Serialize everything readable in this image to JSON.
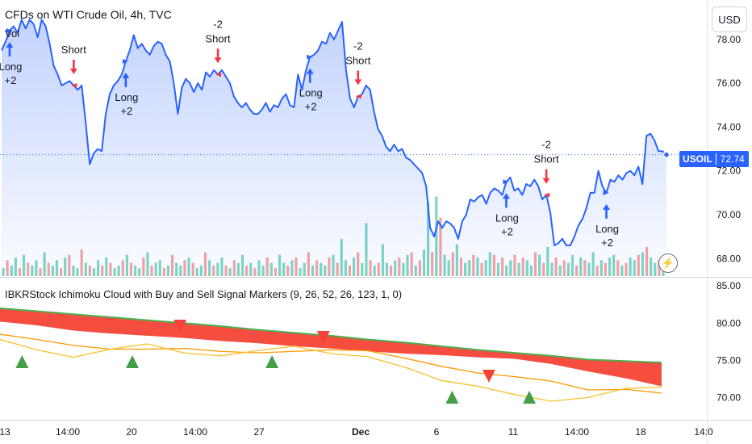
{
  "header": {
    "title": "CFDs on WTI Crude Oil, 4h, TVC",
    "volume_label": "Vol"
  },
  "currency_button": "USD",
  "price_tag": {
    "symbol": "USOIL",
    "price": "72.74"
  },
  "indicator": {
    "title": "IBKRStock Ichimoku Cloud with Buy and Sell Signal Markers (9, 26, 52, 26, 123, 1, 0)"
  },
  "colors": {
    "price_line": "#2962ff",
    "buy": "#2962ff",
    "sell": "#f23645",
    "cloud_red": "#f44336",
    "cloud_green": "#4caf50",
    "vol_up": "#7ed6c4",
    "vol_down": "#f5a3a3",
    "signal_up": "#43a047",
    "signal_down": "#f44336"
  },
  "chart_data": [
    {
      "type": "line",
      "title": "CFDs on WTI Crude Oil, 4h, TVC",
      "ylim": [
        67.2,
        79.8
      ],
      "y_ticks": [
        "78.00",
        "76.00",
        "74.00",
        "72.00",
        "70.00",
        "68.00"
      ],
      "x_ticks": [
        "13",
        "14:00",
        "20",
        "14:00",
        "27",
        "Dec",
        "6",
        "11",
        "14:00",
        "18",
        "14:0"
      ],
      "series": [
        {
          "values": [
            77.5,
            77.9,
            78.4,
            78.6,
            78.3,
            78.9,
            78.5,
            78.9,
            78.7,
            78.1,
            78.9,
            78.6,
            77.8,
            76.8,
            76.4,
            75.9,
            76.0,
            76.1,
            75.9,
            75.7,
            75.9,
            74.2,
            72.3,
            72.8,
            73.0,
            72.9,
            74.6,
            75.5,
            75.9,
            76.1,
            76.4,
            77.0,
            77.5,
            78.2,
            77.6,
            77.8,
            77.5,
            77.3,
            77.7,
            77.9,
            77.8,
            77.3,
            77.0,
            76.0,
            74.6,
            75.8,
            76.2,
            76.0,
            75.6,
            76.0,
            75.7,
            76.5,
            76.3,
            76.6,
            76.4,
            76.6,
            76.3,
            76.0,
            75.4,
            75.1,
            74.9,
            75.1,
            74.8,
            74.6,
            74.6,
            74.8,
            75.1,
            74.7,
            75.0,
            74.9,
            75.3,
            75.5,
            75.0,
            74.9,
            76.4,
            75.7,
            76.6,
            77.2,
            77.3,
            77.5,
            77.9,
            77.8,
            78.3,
            78.0,
            78.4,
            78.8,
            76.6,
            75.3,
            74.9,
            75.4,
            75.5,
            75.9,
            75.7,
            74.7,
            73.9,
            73.6,
            73.1,
            72.9,
            73.2,
            72.9,
            73.0,
            72.6,
            72.5,
            72.3,
            72.1,
            71.9,
            71.3,
            69.4,
            69.0,
            69.7,
            69.4,
            69.7,
            69.6,
            69.4,
            68.9,
            69.7,
            70.0,
            70.7,
            70.6,
            70.8,
            70.9,
            70.5,
            71.0,
            71.2,
            71.1,
            70.9,
            71.5,
            71.7,
            71.1,
            71.2,
            70.9,
            71.4,
            71.3,
            71.6,
            71.3,
            70.7,
            70.9,
            70.1,
            68.6,
            68.7,
            68.9,
            68.6,
            68.6,
            69.0,
            69.5,
            69.8,
            70.3,
            71.0,
            71.0,
            72.0,
            71.3,
            71.0,
            71.6,
            71.5,
            71.8,
            71.6,
            71.9,
            72.0,
            71.8,
            72.2,
            71.4,
            73.6,
            73.7,
            73.4,
            72.9,
            72.9,
            72.74
          ]
        }
      ],
      "signals": [
        {
          "kind": "long",
          "text": [
            "Long",
            "+2"
          ],
          "index": 2
        },
        {
          "kind": "short",
          "text": [
            "Short"
          ],
          "index": 18
        },
        {
          "kind": "long",
          "text": [
            "Long",
            "+2"
          ],
          "index": 31
        },
        {
          "kind": "short",
          "text": [
            "-2",
            "Short"
          ],
          "index": 54
        },
        {
          "kind": "long",
          "text": [
            "Long",
            "+2"
          ],
          "index": 77
        },
        {
          "kind": "short",
          "text": [
            "-2",
            "Short"
          ],
          "index": 89
        },
        {
          "kind": "long",
          "text": [
            "Long",
            "+2"
          ],
          "index": 126
        },
        {
          "kind": "short",
          "text": [
            "-2",
            "Short"
          ],
          "index": 136
        },
        {
          "kind": "long",
          "text": [
            "Long",
            "+2"
          ],
          "index": 151
        }
      ],
      "last_value": 72.74
    },
    {
      "type": "area",
      "title": "IBKRStock Ichimoku Cloud with Buy and Sell Signal Markers (9, 26, 52, 26, 123, 1, 0)",
      "ylim": [
        67.0,
        86.0
      ],
      "y_ticks": [
        "85.00",
        "80.00",
        "75.00",
        "70.00"
      ],
      "cloud_upper": [
        82.0,
        81.6,
        81.2,
        80.8,
        80.4,
        80.0,
        79.6,
        79.1,
        78.7,
        78.3,
        77.8,
        77.4,
        76.9,
        76.4,
        76.0,
        75.6,
        75.1,
        74.9,
        74.7
      ],
      "cloud_lower": [
        80.2,
        79.7,
        79.0,
        78.6,
        78.3,
        78.0,
        77.6,
        77.3,
        76.9,
        76.6,
        76.2,
        75.9,
        75.7,
        75.4,
        75.2,
        74.5,
        73.5,
        72.6,
        71.5
      ],
      "line_orange": [
        78.5,
        77.8,
        77.0,
        76.5,
        76.5,
        76.6,
        76.2,
        76.0,
        76.2,
        76.4,
        76.3,
        75.3,
        74.2,
        73.3,
        72.8,
        72.2,
        71.0,
        71.1,
        70.6
      ],
      "line_yellow": [
        77.8,
        76.4,
        75.4,
        76.5,
        77.2,
        76.0,
        75.6,
        76.3,
        76.9,
        75.9,
        75.5,
        74.1,
        72.3,
        71.5,
        70.4,
        69.5,
        70.0,
        71.2,
        71.4
      ],
      "markers": [
        {
          "kind": "up",
          "index": 0.6
        },
        {
          "kind": "up",
          "index": 3.6
        },
        {
          "kind": "down",
          "index": 4.9
        },
        {
          "kind": "up",
          "index": 7.4
        },
        {
          "kind": "down",
          "index": 8.8
        },
        {
          "kind": "up",
          "index": 12.3
        },
        {
          "kind": "down",
          "index": 13.3
        },
        {
          "kind": "up",
          "index": 14.4
        }
      ]
    }
  ],
  "volume": {
    "values": [
      3,
      6,
      4,
      7,
      3,
      8,
      5,
      4,
      6,
      3,
      9,
      5,
      4,
      6,
      3,
      7,
      8,
      4,
      3,
      10,
      5,
      4,
      3,
      6,
      4,
      7,
      5,
      3,
      4,
      6,
      8,
      5,
      4,
      3,
      7,
      9,
      4,
      5,
      6,
      3,
      4,
      8,
      5,
      4,
      6,
      7,
      5,
      3,
      4,
      9,
      6,
      4,
      5,
      7,
      4,
      3,
      6,
      5,
      8,
      4,
      5,
      3,
      6,
      4,
      7,
      5,
      3,
      8,
      5,
      4,
      6,
      7,
      3,
      5,
      9,
      4,
      6,
      5,
      4,
      7,
      8,
      5,
      14,
      6,
      4,
      7,
      9,
      5,
      20,
      6,
      4,
      5,
      12,
      5,
      4,
      6,
      7,
      5,
      8,
      9,
      4,
      6,
      10,
      28,
      9,
      30,
      22,
      8,
      6,
      9,
      12,
      7,
      5,
      6,
      8,
      7,
      5,
      6,
      9,
      8,
      5,
      7,
      4,
      6,
      8,
      5,
      7,
      6,
      4,
      9,
      8,
      5,
      11,
      5,
      7,
      4,
      6,
      5,
      8,
      4,
      7,
      6,
      5,
      9,
      4,
      6,
      5,
      7,
      8,
      6,
      4,
      5,
      7,
      6,
      8,
      9,
      11,
      7,
      5,
      6,
      4
    ],
    "ylim": [
      0,
      32
    ]
  }
}
